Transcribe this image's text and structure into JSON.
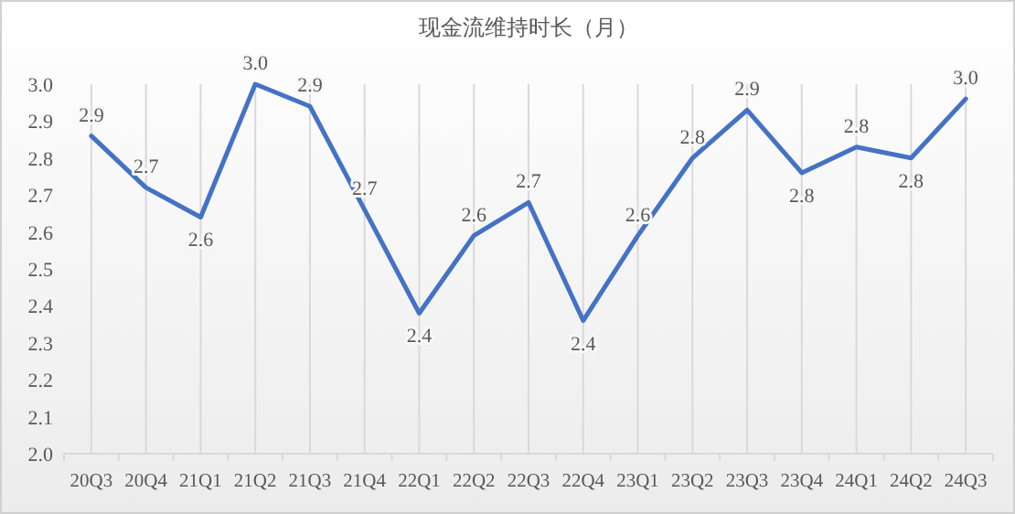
{
  "chart_data": {
    "type": "line",
    "title": "现金流维持时长（月）",
    "categories": [
      "20Q3",
      "20Q4",
      "21Q1",
      "21Q2",
      "21Q3",
      "21Q4",
      "22Q1",
      "22Q2",
      "22Q3",
      "22Q4",
      "23Q1",
      "23Q2",
      "23Q3",
      "23Q4",
      "24Q1",
      "24Q2",
      "24Q3"
    ],
    "series": [
      {
        "color": "#4472c4",
        "values": [
          2.86,
          2.72,
          2.64,
          3.0,
          2.94,
          2.66,
          2.38,
          2.59,
          2.68,
          2.36,
          2.59,
          2.8,
          2.93,
          2.76,
          2.83,
          2.8,
          2.96
        ],
        "value_labels": [
          "2.9",
          "2.7",
          "2.6",
          "3.0",
          "2.9",
          "2.7",
          "2.4",
          "2.6",
          "2.7",
          "2.4",
          "2.6",
          "2.8",
          "2.9",
          "2.8",
          "2.8",
          "2.8",
          "3.0"
        ]
      }
    ],
    "ylim": [
      2.0,
      3.0
    ],
    "yticks": [
      {
        "value": 2.0,
        "label": "2.0"
      },
      {
        "value": 2.1,
        "label": "2.1"
      },
      {
        "value": 2.2,
        "label": "2.2"
      },
      {
        "value": 2.3,
        "label": "2.3"
      },
      {
        "value": 2.4,
        "label": "2.4"
      },
      {
        "value": 2.5,
        "label": "2.5"
      },
      {
        "value": 2.6,
        "label": "2.6"
      },
      {
        "value": 2.7,
        "label": "2.7"
      },
      {
        "value": 2.8,
        "label": "2.8"
      },
      {
        "value": 2.9,
        "label": "2.9"
      },
      {
        "value": 3.0,
        "label": "3.0"
      }
    ],
    "grid": "x",
    "marker": "none",
    "line_style": "solid"
  }
}
